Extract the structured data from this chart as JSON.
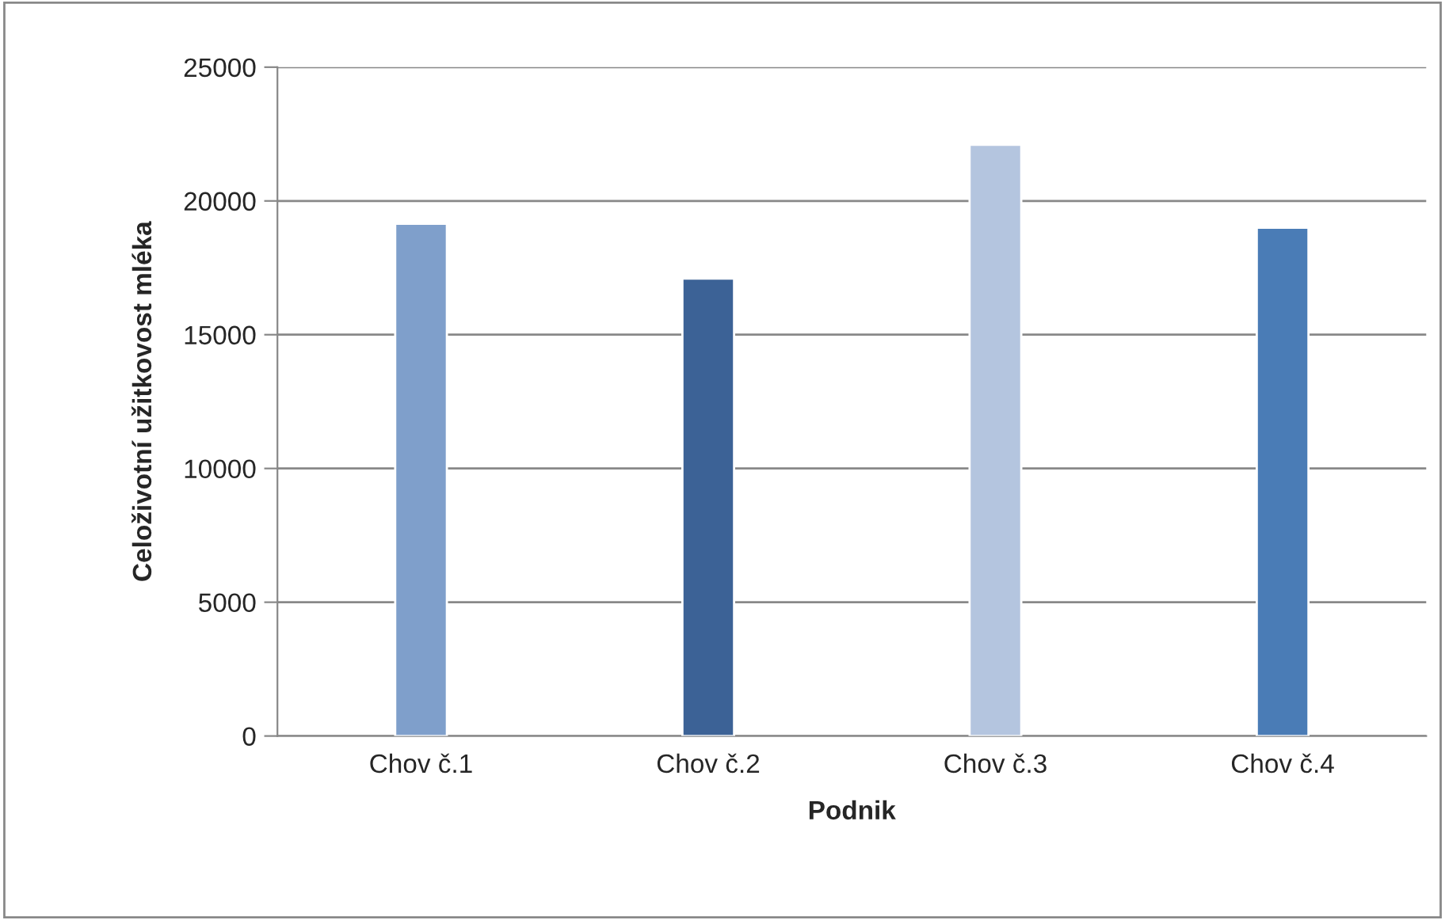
{
  "chart_data": {
    "type": "bar",
    "xlabel": "Podnik",
    "ylabel": "Celoživotní užitkovost mléka",
    "categories": [
      "Chov č.1",
      "Chov č.2",
      "Chov č.3",
      "Chov č.4"
    ],
    "values": [
      19150,
      17100,
      22100,
      19000
    ],
    "colors": [
      "#7f9fcb",
      "#3c6296",
      "#b4c5df",
      "#4a7cb6"
    ],
    "ylim": [
      0,
      25000
    ],
    "yticks": [
      0,
      5000,
      10000,
      15000,
      20000,
      25000
    ],
    "grid": "y",
    "legend": false
  }
}
